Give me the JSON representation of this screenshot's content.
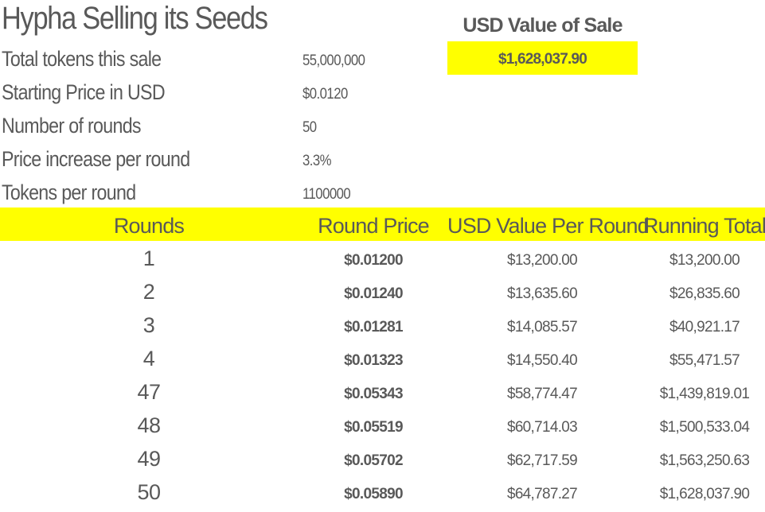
{
  "sheet": {
    "title": "Hypha Selling its Seeds",
    "params": [
      {
        "label": "Total tokens this sale",
        "value": "55,000,000"
      },
      {
        "label": "Starting Price in USD",
        "value": "$0.0120"
      },
      {
        "label": "Number of rounds",
        "value": "50"
      },
      {
        "label": "Price increase per round",
        "value": "3.3%"
      },
      {
        "label": "Tokens per round",
        "value": "1100000"
      }
    ],
    "usd_value_header": "USD Value of Sale",
    "usd_value": "$1,628,037.90",
    "highlight_color": "#ffff00",
    "text_color": "#595959"
  },
  "table": {
    "headers": [
      "Rounds",
      "Round Price",
      "USD Value Per Round",
      "Running Total"
    ],
    "rows": [
      {
        "round": "1",
        "price": "$0.01200",
        "usd": "$13,200.00",
        "total": "$13,200.00"
      },
      {
        "round": "2",
        "price": "$0.01240",
        "usd": "$13,635.60",
        "total": "$26,835.60"
      },
      {
        "round": "3",
        "price": "$0.01281",
        "usd": "$14,085.57",
        "total": "$40,921.17"
      },
      {
        "round": "4",
        "price": "$0.01323",
        "usd": "$14,550.40",
        "total": "$55,471.57"
      },
      {
        "round": "47",
        "price": "$0.05343",
        "usd": "$58,774.47",
        "total": "$1,439,819.01"
      },
      {
        "round": "48",
        "price": "$0.05519",
        "usd": "$60,714.03",
        "total": "$1,500,533.04"
      },
      {
        "round": "49",
        "price": "$0.05702",
        "usd": "$62,717.59",
        "total": "$1,563,250.63"
      },
      {
        "round": "50",
        "price": "$0.05890",
        "usd": "$64,787.27",
        "total": "$1,628,037.90"
      }
    ]
  }
}
